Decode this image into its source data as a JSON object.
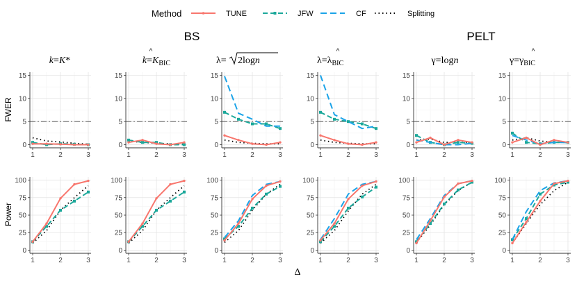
{
  "legend": {
    "title": "Method",
    "entries": [
      {
        "key": "tune",
        "label": "TUNE"
      },
      {
        "key": "jfw",
        "label": "JFW"
      },
      {
        "key": "cf",
        "label": "CF"
      },
      {
        "key": "split",
        "label": "Splitting"
      }
    ]
  },
  "groups": [
    "BS",
    "PELT"
  ],
  "panel_titles": [
    "k=K*",
    "k=K̂_BIC",
    "λ=√(2log n)",
    "λ=λ̂_BIC",
    "γ=log n",
    "γ=γ̂_BIC"
  ],
  "row_labels": [
    "FWER",
    "Power"
  ],
  "xlabel": "Δ",
  "styles": {
    "tune": {
      "color": "#F8766D",
      "dash": "none"
    },
    "jfw": {
      "color": "#1BA89A",
      "dash": "7,4"
    },
    "cf": {
      "color": "#1AA3E8",
      "dash": "9,5"
    },
    "split": {
      "color": "#000000",
      "dash": "1.5,4"
    }
  },
  "chart_data": {
    "type": "line",
    "x": [
      1,
      1.5,
      2,
      2.5,
      3
    ],
    "xticks": [
      1,
      2,
      3
    ],
    "fwer": {
      "ylim": [
        0,
        15
      ],
      "yticks": [
        0,
        5,
        10,
        15
      ],
      "reference_line": 5,
      "panels": [
        {
          "tune": [
            0.2,
            0.2,
            0.1,
            0.0,
            0.0
          ],
          "jfw": [
            0.5,
            0.0,
            0.2,
            0.1,
            0.0
          ],
          "cf": null,
          "split": [
            1.5,
            0.8,
            0.6,
            0.3,
            0.1
          ]
        },
        {
          "tune": [
            0.5,
            1.0,
            0.2,
            0.0,
            0.5
          ],
          "jfw": [
            1.0,
            0.5,
            0.5,
            0.0,
            0.0
          ],
          "cf": null,
          "split": [
            0.8,
            0.5,
            0.3,
            0.2,
            0.1
          ]
        },
        {
          "tune": [
            2.0,
            1.0,
            0.2,
            0.0,
            0.5
          ],
          "jfw": [
            7.0,
            5.5,
            4.5,
            4.5,
            3.5
          ],
          "cf": [
            14.8,
            6.8,
            5.5,
            4.0,
            4.0
          ],
          "split": [
            1.0,
            0.5,
            0.3,
            0.2,
            0.2
          ]
        },
        {
          "tune": [
            2.0,
            1.0,
            0.2,
            0.0,
            0.5
          ],
          "jfw": [
            7.0,
            5.5,
            5.0,
            4.5,
            3.5
          ],
          "cf": [
            15.0,
            6.5,
            5.0,
            3.5,
            4.0
          ],
          "split": [
            1.0,
            0.5,
            0.3,
            0.2,
            0.2
          ]
        },
        {
          "tune": [
            0.5,
            1.5,
            0.0,
            1.0,
            0.5
          ],
          "jfw": [
            2.0,
            0.5,
            0.0,
            0.5,
            0.3
          ],
          "cf": [
            1.0,
            0.5,
            0.0,
            0.0,
            0.3
          ],
          "split": [
            1.0,
            1.2,
            0.5,
            0.5,
            0.5
          ]
        },
        {
          "tune": [
            0.5,
            1.5,
            0.0,
            1.0,
            0.5
          ],
          "jfw": [
            2.5,
            0.5,
            0.2,
            0.5,
            0.5
          ],
          "cf": [
            2.0,
            1.0,
            0.2,
            0.5,
            0.5
          ],
          "split": [
            1.0,
            1.5,
            0.8,
            0.5,
            0.5
          ]
        }
      ]
    },
    "power": {
      "ylim": [
        0,
        100
      ],
      "yticks": [
        0,
        25,
        50,
        75,
        100
      ],
      "panels": [
        {
          "tune": [
            12,
            38,
            74,
            94,
            99
          ],
          "jfw": [
            12,
            34,
            57,
            70,
            83
          ],
          "cf": null,
          "split": [
            10,
            28,
            57,
            75,
            92
          ]
        },
        {
          "tune": [
            12,
            38,
            74,
            94,
            99
          ],
          "jfw": [
            12,
            34,
            57,
            70,
            83
          ],
          "cf": null,
          "split": [
            10,
            28,
            57,
            75,
            92
          ]
        },
        {
          "tune": [
            14,
            38,
            73,
            92,
            98
          ],
          "jfw": [
            16,
            34,
            60,
            80,
            91
          ],
          "cf": [
            18,
            42,
            78,
            94,
            98
          ],
          "split": [
            11,
            28,
            57,
            80,
            94
          ]
        },
        {
          "tune": [
            14,
            38,
            73,
            92,
            98
          ],
          "jfw": [
            12,
            34,
            60,
            76,
            90
          ],
          "cf": [
            15,
            45,
            80,
            94,
            98
          ],
          "split": [
            10,
            28,
            56,
            80,
            94
          ]
        },
        {
          "tune": [
            10,
            42,
            76,
            95,
            99
          ],
          "jfw": [
            12,
            38,
            66,
            86,
            97
          ],
          "cf": [
            15,
            45,
            78,
            95,
            99
          ],
          "split": [
            11,
            36,
            65,
            85,
            97
          ]
        },
        {
          "tune": [
            10,
            40,
            70,
            95,
            99
          ],
          "jfw": [
            15,
            45,
            80,
            93,
            97
          ],
          "cf": [
            15,
            55,
            85,
            96,
            99
          ],
          "split": [
            10,
            38,
            65,
            85,
            97
          ]
        }
      ]
    }
  }
}
